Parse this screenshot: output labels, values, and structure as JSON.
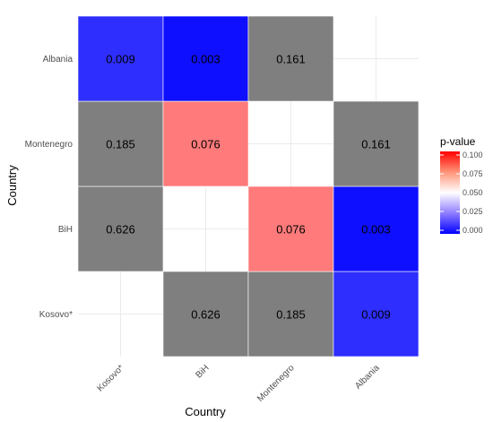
{
  "chart_data": {
    "type": "heatmap",
    "title": "",
    "xlabel": "Country",
    "ylabel": "Country",
    "x_categories": [
      "Kosovo*",
      "BiH",
      "Montenegro",
      "Albania"
    ],
    "y_categories": [
      "Kosovo*",
      "BiH",
      "Montenegro",
      "Albania"
    ],
    "cells": [
      {
        "x": "BiH",
        "y": "Kosovo*",
        "value": 0.626,
        "label": "0.626"
      },
      {
        "x": "Montenegro",
        "y": "Kosovo*",
        "value": 0.185,
        "label": "0.185"
      },
      {
        "x": "Albania",
        "y": "Kosovo*",
        "value": 0.009,
        "label": "0.009"
      },
      {
        "x": "Kosovo*",
        "y": "BiH",
        "value": 0.626,
        "label": "0.626"
      },
      {
        "x": "Montenegro",
        "y": "BiH",
        "value": 0.076,
        "label": "0.076"
      },
      {
        "x": "Albania",
        "y": "BiH",
        "value": 0.003,
        "label": "0.003"
      },
      {
        "x": "Kosovo*",
        "y": "Montenegro",
        "value": 0.185,
        "label": "0.185"
      },
      {
        "x": "BiH",
        "y": "Montenegro",
        "value": 0.076,
        "label": "0.076"
      },
      {
        "x": "Albania",
        "y": "Montenegro",
        "value": 0.161,
        "label": "0.161"
      },
      {
        "x": "Kosovo*",
        "y": "Albania",
        "value": 0.009,
        "label": "0.009"
      },
      {
        "x": "BiH",
        "y": "Albania",
        "value": 0.003,
        "label": "0.003"
      },
      {
        "x": "Montenegro",
        "y": "Albania",
        "value": 0.161,
        "label": "0.161"
      }
    ],
    "color_scale": {
      "low": "#0000ff",
      "mid": "#ffffff",
      "high": "#ff0000",
      "midpoint": 0.05,
      "limits": [
        0,
        0.1
      ],
      "out_of_range_color": "#7f7f7f"
    },
    "legend": {
      "title": "p-value",
      "ticks": [
        "0.000",
        "0.025",
        "0.050",
        "0.075",
        "0.100"
      ],
      "placement": "right"
    },
    "grid": true
  }
}
